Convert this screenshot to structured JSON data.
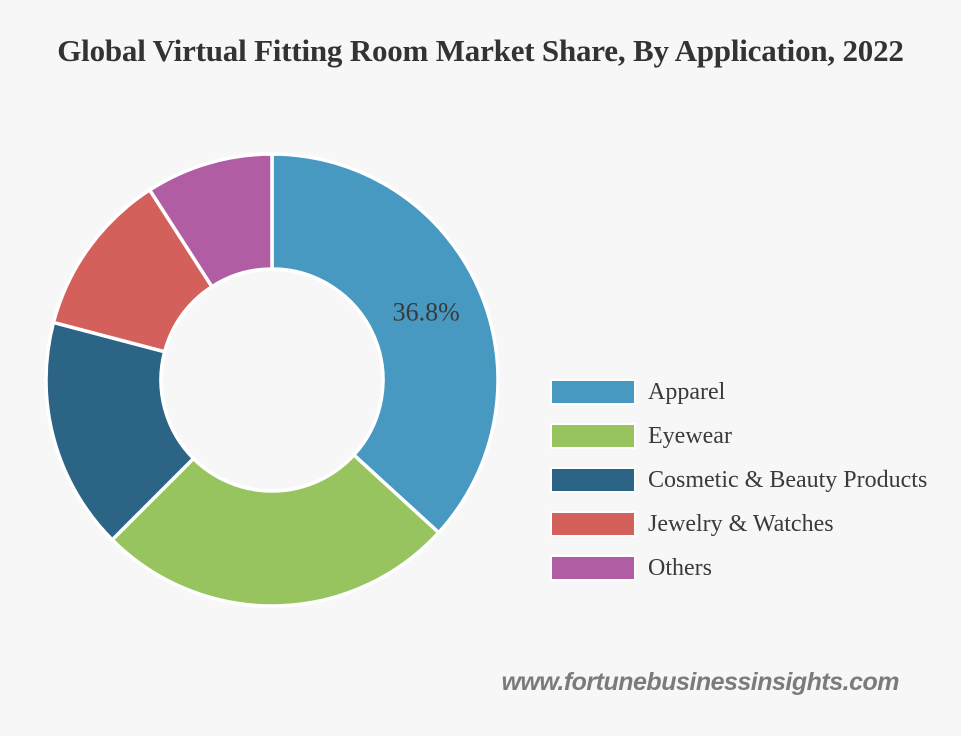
{
  "page": {
    "background_color": "#f7f7f7"
  },
  "title": {
    "text": "Global Virtual Fitting Room Market Share, By Application, 2022",
    "color": "#333333"
  },
  "chart_data": {
    "type": "pie",
    "subtype": "donut",
    "title": "Global Virtual Fitting Room Market Share, By Application, 2022",
    "unit": "%",
    "start_angle_deg": 0,
    "direction": "clockwise",
    "inner_radius_ratio": 0.49,
    "legend_position": "right",
    "separator_color": "#ffffff",
    "data_label_color": "#3a3a3a",
    "slices": [
      {
        "label": "Apparel",
        "value": 36.8,
        "color": "#4799c2",
        "data_label": "36.8%"
      },
      {
        "label": "Eyewear",
        "value": 25.7,
        "color": "#98c45f",
        "data_label": ""
      },
      {
        "label": "Cosmetic & Beauty Products",
        "value": 16.6,
        "color": "#2c6485",
        "data_label": ""
      },
      {
        "label": "Jewelry & Watches",
        "value": 11.8,
        "color": "#d4605b",
        "data_label": ""
      },
      {
        "label": "Others",
        "value": 9.1,
        "color": "#b05da4",
        "data_label": ""
      }
    ]
  },
  "footer": {
    "text": "www.fortunebusinessinsights.com",
    "color": "#7b7b7b"
  }
}
